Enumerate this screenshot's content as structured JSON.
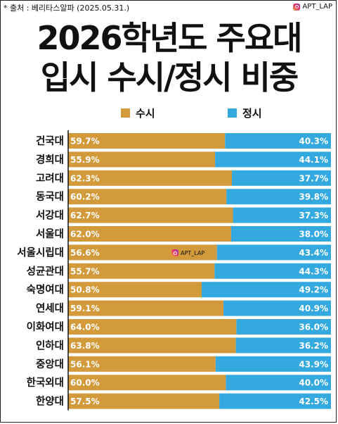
{
  "source": "* 출처 : 베리타스알파 (2025.05.31.)",
  "brand": "APT_LAP",
  "watermark": "APT_LAP",
  "title_line1": "2026학년도 주요대",
  "title_line2": "입시 수시/정시 비중",
  "colors": {
    "susi": "#D29A3A",
    "jeongsi": "#33A9E0",
    "axis": "#111111"
  },
  "chart_data": {
    "type": "bar",
    "stacked": true,
    "orientation": "horizontal",
    "title": "2026학년도 주요대 입시 수시/정시 비중",
    "legend_position": "top",
    "xlim": [
      0,
      100
    ],
    "categories": [
      "건국대",
      "경희대",
      "고려대",
      "동국대",
      "서강대",
      "서울대",
      "서울시립대",
      "성균관대",
      "숙명여대",
      "연세대",
      "이화여대",
      "인하대",
      "중앙대",
      "한국외대",
      "한양대"
    ],
    "series": [
      {
        "name": "수시",
        "values": [
          59.7,
          55.9,
          62.3,
          60.2,
          62.7,
          62.0,
          56.6,
          55.7,
          50.8,
          59.1,
          64.0,
          63.8,
          56.1,
          60.0,
          57.5
        ],
        "labels": [
          "59.7%",
          "55.9%",
          "62.3%",
          "60.2%",
          "62.7%",
          "62.0%",
          "56.6%",
          "55.7%",
          "50.8%",
          "59.1%",
          "64.0%",
          "63.8%",
          "56.1%",
          "60.0%",
          "57.5%"
        ]
      },
      {
        "name": "정시",
        "values": [
          40.3,
          44.1,
          37.7,
          39.8,
          37.3,
          38.0,
          43.4,
          44.3,
          49.2,
          40.9,
          36.0,
          36.2,
          43.9,
          40.0,
          42.5
        ],
        "labels": [
          "40.3%",
          "44.1%",
          "37.7%",
          "39.8%",
          "37.3%",
          "38.0%",
          "43.4%",
          "44.3%",
          "49.2%",
          "40.9%",
          "36.0%",
          "36.2%",
          "43.9%",
          "40.0%",
          "42.5%"
        ]
      }
    ]
  }
}
